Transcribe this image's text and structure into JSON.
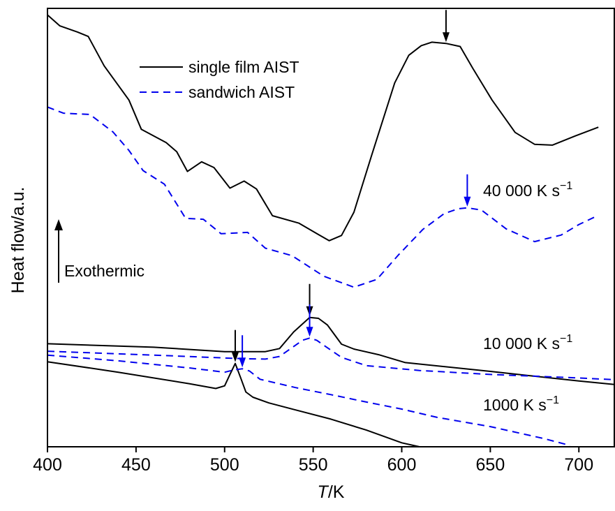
{
  "chart_data": {
    "type": "line",
    "xlabel_italic": "T",
    "xlabel_unit": "/K",
    "ylabel": "Heat flow/a.u.",
    "xlim": [
      400,
      720
    ],
    "ylim": [
      0,
      100
    ],
    "x_ticks": [
      400,
      450,
      500,
      550,
      600,
      650,
      700
    ],
    "grid": false,
    "y_tick_labels": false,
    "legend": {
      "placement": "top-left",
      "entries": [
        {
          "label": "single film AIST",
          "color": "#000000",
          "dash": "solid"
        },
        {
          "label": "sandwich AIST",
          "color": "#0000ee",
          "dash": "dashed"
        }
      ]
    },
    "annotations": {
      "rate_40000": {
        "value": "40 000 K s",
        "sup": "−1"
      },
      "rate_10000": {
        "value": "10 000 K s",
        "sup": "−1"
      },
      "rate_1000": {
        "value": "1000 K s",
        "sup": "−1"
      },
      "exothermic": "Exothermic"
    },
    "peak_markers": [
      {
        "x": 625,
        "y": 92.0,
        "color": "#000000"
      },
      {
        "x": 637,
        "y": 54.5,
        "color": "#0000ee"
      },
      {
        "x": 548,
        "y": 29.5,
        "color": "#000000"
      },
      {
        "x": 548,
        "y": 24.8,
        "color": "#0000ee"
      },
      {
        "x": 506,
        "y": 19.0,
        "color": "#000000"
      },
      {
        "x": 510,
        "y": 17.8,
        "color": "#0000ee"
      }
    ],
    "series": [
      {
        "name": "single film AIST",
        "rate": "40 000 K s−1",
        "color": "#000000",
        "dash": "solid",
        "x": [
          400,
          407,
          417,
          423,
          432,
          446,
          453,
          467,
          473,
          479,
          487,
          494,
          503,
          511,
          518,
          527,
          542,
          553,
          559,
          566,
          573,
          583,
          596,
          604,
          611,
          617,
          625,
          633,
          640,
          651,
          664,
          675,
          685,
          698,
          711
        ],
        "y": [
          98.5,
          96.0,
          94.6,
          93.6,
          86.9,
          79.1,
          72.4,
          69.4,
          67.3,
          62.8,
          65.0,
          63.7,
          59.0,
          60.6,
          58.8,
          52.7,
          51.0,
          48.4,
          47.0,
          48.2,
          53.5,
          66.5,
          83.0,
          89.3,
          91.5,
          92.3,
          92.0,
          91.3,
          86.4,
          79.1,
          71.7,
          69.0,
          68.8,
          70.9,
          72.9
        ]
      },
      {
        "name": "sandwich AIST",
        "rate": "40 000 K s−1",
        "color": "#0000ee",
        "dash": "dashed",
        "x": [
          400,
          409,
          424,
          437,
          446,
          454,
          466,
          478,
          488,
          498,
          513,
          523,
          538,
          556,
          573,
          586,
          598,
          612,
          624,
          632,
          637,
          645,
          659,
          675,
          690,
          700,
          711
        ],
        "y": [
          77.5,
          76.1,
          75.8,
          71.8,
          67.6,
          63.0,
          59.9,
          52.1,
          51.9,
          48.6,
          48.9,
          45.3,
          43.6,
          38.9,
          36.4,
          38.2,
          43.7,
          49.6,
          53.2,
          54.3,
          54.5,
          54.0,
          49.7,
          46.8,
          48.3,
          50.7,
          52.8
        ]
      },
      {
        "name": "single film AIST",
        "rate": "10 000 K s−1",
        "color": "#000000",
        "dash": "solid",
        "x": [
          400,
          460,
          500,
          523,
          531,
          539,
          548,
          553,
          558,
          566,
          573,
          587,
          602,
          650,
          700,
          720
        ],
        "y": [
          23.5,
          22.7,
          21.7,
          21.7,
          22.4,
          26.2,
          29.5,
          29.3,
          27.8,
          23.4,
          22.3,
          21.0,
          19.2,
          17.2,
          15.0,
          14.2
        ]
      },
      {
        "name": "sandwich AIST",
        "rate": "10 000 K s−1",
        "color": "#0000ee",
        "dash": "dashed",
        "x": [
          400,
          460,
          510,
          523,
          531,
          538,
          544,
          548,
          552,
          558,
          566,
          580,
          610,
          650,
          700,
          720
        ],
        "y": [
          21.8,
          20.9,
          20.1,
          20.0,
          20.6,
          22.6,
          24.3,
          24.8,
          24.3,
          22.6,
          20.4,
          18.5,
          17.4,
          16.5,
          15.7,
          15.3
        ]
      },
      {
        "name": "single film AIST",
        "rate": "1000 K s−1",
        "color": "#000000",
        "dash": "solid",
        "x": [
          400,
          440,
          480,
          495,
          500,
          503,
          506,
          509,
          512,
          516,
          525,
          540,
          560,
          580,
          600,
          610
        ],
        "y": [
          19.4,
          17.0,
          14.4,
          13.3,
          13.9,
          16.5,
          19.0,
          15.8,
          12.5,
          11.3,
          10.0,
          8.4,
          6.3,
          3.8,
          0.9,
          0.0
        ]
      },
      {
        "name": "sandwich AIST",
        "rate": "1000 K s−1",
        "color": "#0000ee",
        "dash": "dashed",
        "x": [
          400,
          440,
          480,
          500,
          505,
          510,
          514,
          520,
          540,
          560,
          580,
          600,
          620,
          650,
          680,
          695
        ],
        "y": [
          20.9,
          19.6,
          18.0,
          17.0,
          17.5,
          17.8,
          17.3,
          15.4,
          13.5,
          11.9,
          10.2,
          8.6,
          6.7,
          4.6,
          1.9,
          0.3
        ]
      }
    ]
  }
}
